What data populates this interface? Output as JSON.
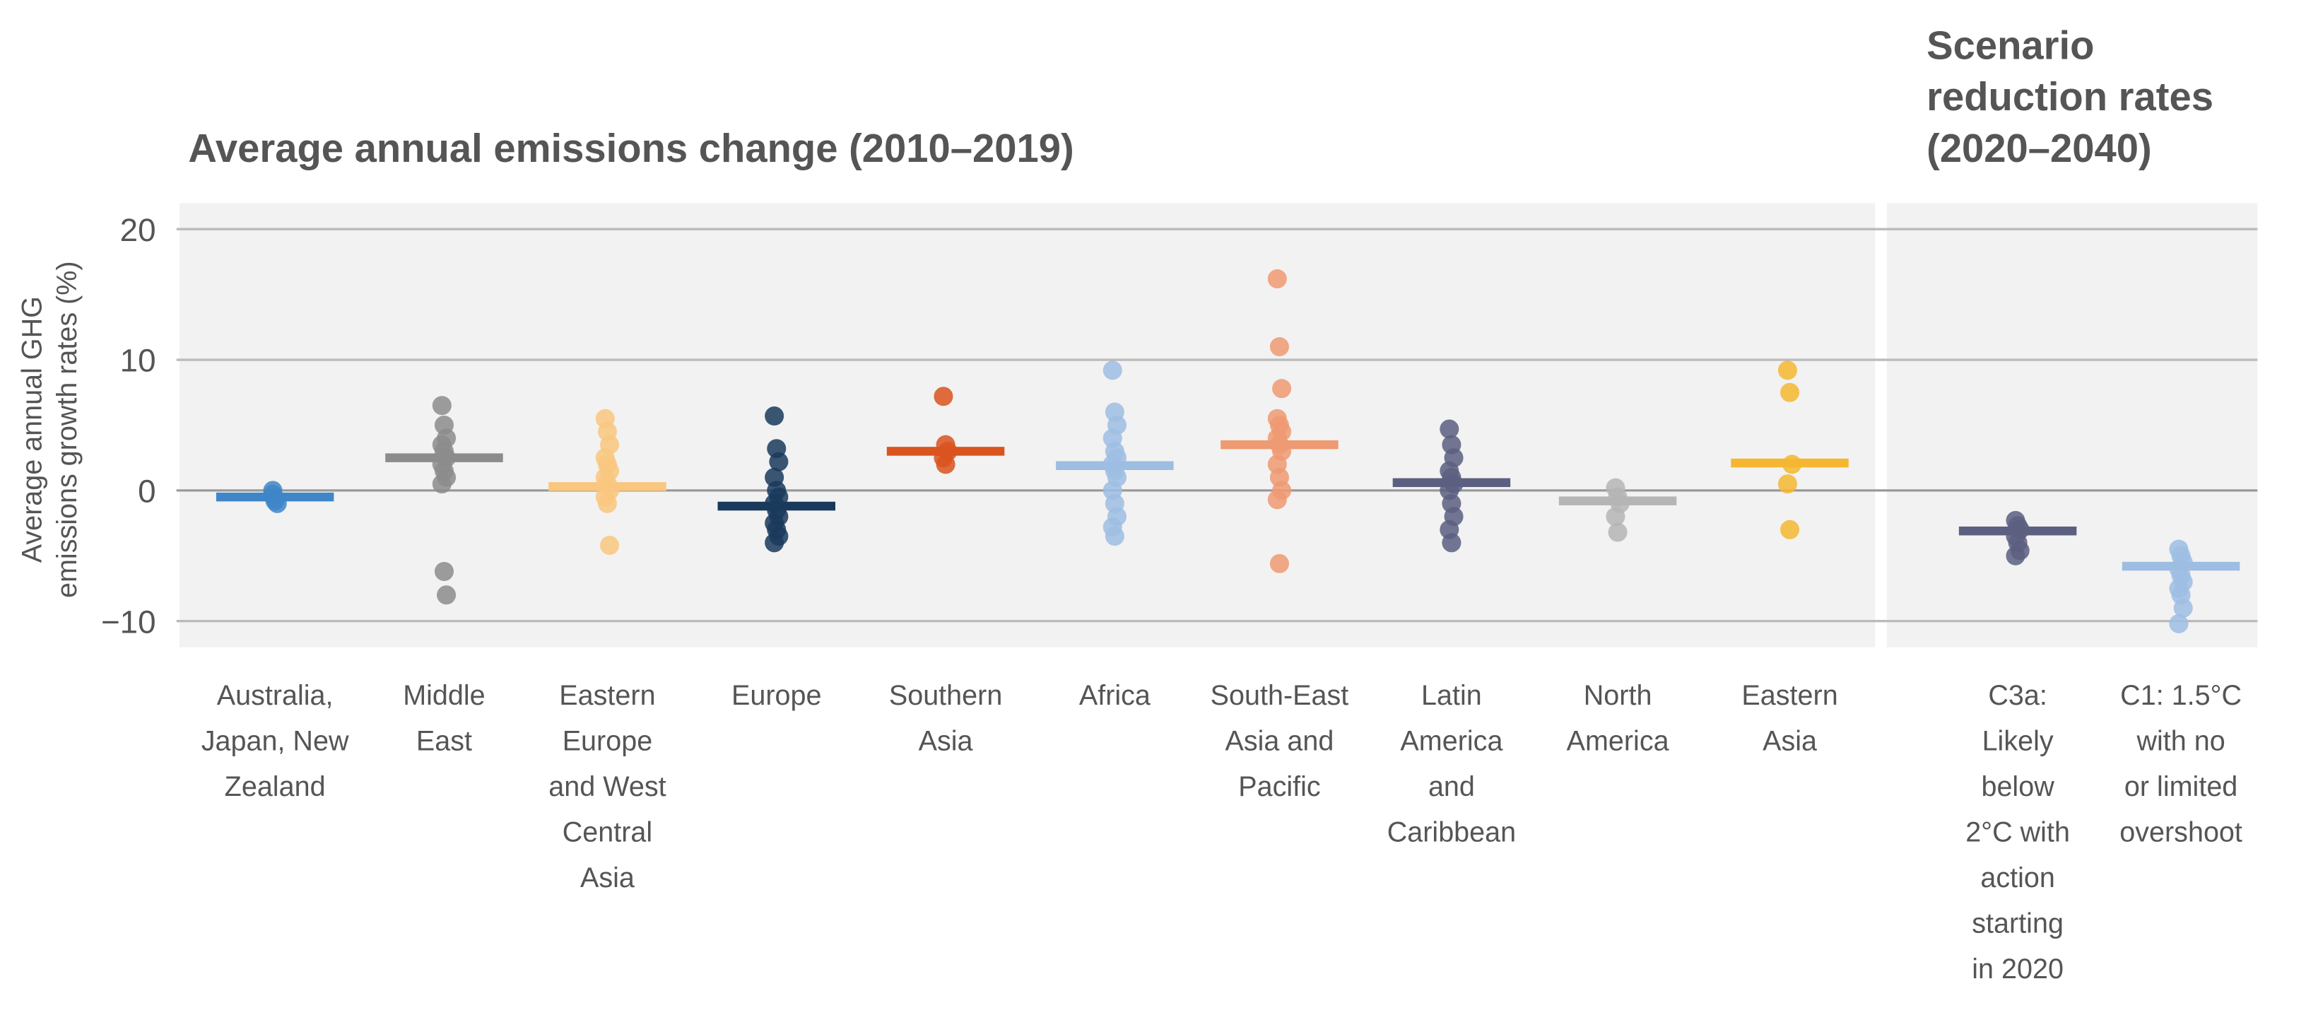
{
  "chart_data": {
    "type": "strip",
    "ylabel": [
      "Average annual GHG",
      "emissions growth rates (%)"
    ],
    "ylim": [
      -12,
      22
    ],
    "yticks": [
      {
        "value": -10,
        "label": "−10"
      },
      0,
      10,
      20
    ],
    "grid": true,
    "panels": [
      {
        "title": "Average annual emissions change (2010–2019)",
        "categories": [
          "Australia,\nJapan, New\nZealand",
          "Middle\nEast",
          "Eastern\nEurope\nand West\nCentral\nAsia",
          "Europe",
          "Southern\nAsia",
          "Africa",
          "South-East\nAsia and\nPacific",
          "Latin\nAmerica\nand\nCaribbean",
          "North\nAmerica",
          "Eastern\nAsia"
        ],
        "colors": [
          "#3f86c8",
          "#8c8c8c",
          "#f9c77f",
          "#1a3a5c",
          "#d9541e",
          "#9dbde3",
          "#ee9a72",
          "#5c5f80",
          "#b5b5b5",
          "#f5b731"
        ],
        "means": [
          -0.5,
          2.5,
          0.3,
          -1.2,
          3.0,
          1.9,
          3.5,
          0.6,
          -0.8,
          2.1
        ],
        "points": [
          [
            -0.3,
            -0.6,
            -1.0,
            0.0,
            -0.8
          ],
          [
            6.5,
            5.0,
            4.0,
            3.5,
            3.0,
            2.5,
            2.0,
            1.5,
            1.0,
            0.5,
            -6.2,
            -8.0
          ],
          [
            5.5,
            4.5,
            3.5,
            2.5,
            2.0,
            1.5,
            1.0,
            0.5,
            0.0,
            -0.5,
            -1.0,
            -4.2
          ],
          [
            5.7,
            3.2,
            2.2,
            1.0,
            0.0,
            -0.5,
            -1.0,
            -1.5,
            -2.0,
            -2.5,
            -3.0,
            -3.5,
            -4.0
          ],
          [
            7.2,
            3.5,
            3.0,
            2.5,
            2.0
          ],
          [
            9.2,
            6.0,
            5.0,
            4.0,
            3.0,
            2.5,
            2.0,
            1.5,
            1.0,
            0.0,
            -1.0,
            -2.0,
            -2.8,
            -3.5
          ],
          [
            16.2,
            11.0,
            7.8,
            5.5,
            5.0,
            4.5,
            4.0,
            3.5,
            3.0,
            2.0,
            1.0,
            0.0,
            -0.7,
            -5.6
          ],
          [
            4.7,
            3.5,
            2.5,
            1.5,
            1.0,
            0.5,
            0.0,
            -1.0,
            -2.0,
            -3.0,
            -4.0
          ],
          [
            0.2,
            -0.5,
            -1.0,
            -2.0,
            -3.2
          ],
          [
            9.2,
            7.5,
            2.0,
            0.5,
            -3.0
          ]
        ]
      },
      {
        "title": "Scenario\nreduction rates\n(2020–2040)",
        "categories": [
          "C3a:\nLikely\nbelow\n2°C with\naction\nstarting\nin 2020",
          "C1: 1.5°C\nwith no\nor limited\novershoot"
        ],
        "colors": [
          "#5c5f80",
          "#9dbde3"
        ],
        "means": [
          -3.1,
          -5.8
        ],
        "points": [
          [
            -2.3,
            -2.7,
            -3.0,
            -3.5,
            -4.0,
            -4.6,
            -5.0
          ],
          [
            -4.5,
            -5.0,
            -5.5,
            -6.0,
            -6.5,
            -7.0,
            -7.5,
            -8.0,
            -9.0,
            -10.2
          ]
        ]
      }
    ]
  }
}
